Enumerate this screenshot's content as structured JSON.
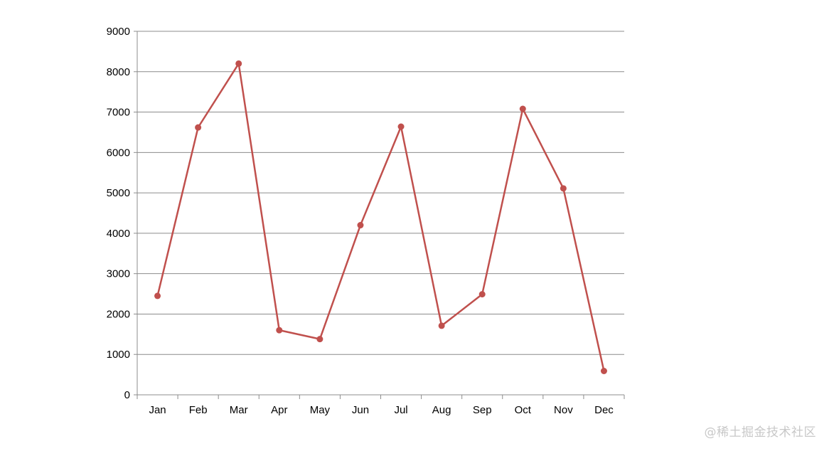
{
  "chart_data": {
    "type": "line",
    "categories": [
      "Jan",
      "Feb",
      "Mar",
      "Apr",
      "May",
      "Jun",
      "Jul",
      "Aug",
      "Sep",
      "Oct",
      "Nov",
      "Dec"
    ],
    "series": [
      {
        "values": [
          2450,
          6620,
          8200,
          1600,
          1380,
          4200,
          6640,
          1710,
          2490,
          7080,
          5110,
          590
        ],
        "color": "#c0504d"
      }
    ],
    "ylim": [
      0,
      9000
    ],
    "yticks": [
      0,
      1000,
      2000,
      3000,
      4000,
      5000,
      6000,
      7000,
      8000,
      9000
    ],
    "grid": true,
    "markers": true
  },
  "watermark": "@稀土掘金技术社区"
}
